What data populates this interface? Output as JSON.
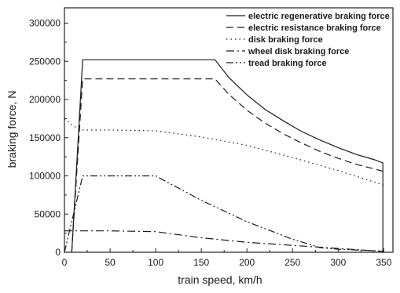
{
  "chart_data": {
    "type": "line",
    "title": "",
    "xlabel": "train speed, km/h",
    "ylabel": "braking force, N",
    "xlim": [
      0,
      360
    ],
    "ylim": [
      0,
      320000
    ],
    "xticks": [
      0,
      50,
      100,
      150,
      200,
      250,
      300,
      350
    ],
    "yticks": [
      0,
      50000,
      100000,
      150000,
      200000,
      250000,
      300000
    ],
    "xtick_labels": [
      "0",
      "50",
      "100",
      "150",
      "200",
      "250",
      "300",
      "350"
    ],
    "ytick_labels": [
      "0",
      "50000",
      "100000",
      "150000",
      "200000",
      "250000",
      "300000"
    ],
    "grid": false,
    "legend_position": "top-right",
    "series": [
      {
        "name": "electric regenerative braking force",
        "dash": "solid",
        "x": [
          8,
          20,
          40,
          60,
          80,
          100,
          120,
          140,
          160,
          165,
          180,
          200,
          220,
          240,
          260,
          280,
          300,
          320,
          340,
          349,
          349
        ],
        "y": [
          0,
          252000,
          252000,
          252000,
          252000,
          252000,
          252000,
          252000,
          252000,
          252000,
          229000,
          206000,
          187000,
          172000,
          158000,
          147000,
          137000,
          128000,
          121000,
          117000,
          0
        ]
      },
      {
        "name": "electric resistance braking force",
        "dash": "dashed",
        "x": [
          8,
          20,
          40,
          60,
          80,
          100,
          120,
          140,
          160,
          165,
          180,
          200,
          220,
          240,
          260,
          280,
          300,
          320,
          340,
          349
        ],
        "y": [
          0,
          227000,
          227000,
          227000,
          227000,
          227000,
          227000,
          227000,
          227000,
          227000,
          207000,
          186000,
          169000,
          155000,
          143000,
          132000,
          123000,
          115000,
          109000,
          106000
        ]
      },
      {
        "name": "disk braking force",
        "dash": "dotted",
        "x": [
          0,
          10,
          20,
          50,
          100,
          150,
          200,
          250,
          300,
          350
        ],
        "y": [
          175000,
          165000,
          160000,
          160000,
          159000,
          151000,
          140000,
          124000,
          107000,
          88000
        ]
      },
      {
        "name": "wheel disk  braking force",
        "dash": "dash-dot",
        "x": [
          0,
          20,
          50,
          100,
          150,
          200,
          250,
          300,
          350
        ],
        "y": [
          28000,
          28000,
          28000,
          27000,
          19000,
          13000,
          9000,
          5000,
          1000
        ]
      },
      {
        "name": "tread braking force",
        "dash": "dash-dot-dot",
        "x": [
          0,
          20,
          50,
          100,
          150,
          200,
          250,
          270,
          280,
          300,
          320,
          350
        ],
        "y": [
          0,
          100000,
          100000,
          100000,
          68000,
          40000,
          17000,
          10000,
          6000,
          4000,
          3000,
          1500
        ]
      }
    ]
  }
}
